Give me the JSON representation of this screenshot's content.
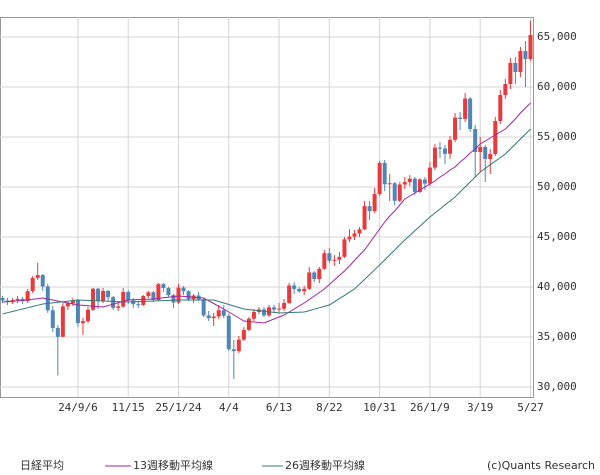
{
  "chart_data": {
    "type": "candlestick",
    "name": "日経平均",
    "source": "(c)Quants Research",
    "up_color": "#e8393c",
    "down_color": "#4f86b8",
    "grid": true,
    "categories": [
      null,
      null,
      null,
      null,
      null,
      null,
      null,
      null,
      null,
      null,
      null,
      null,
      null,
      null,
      null,
      "24/9/6",
      null,
      null,
      null,
      null,
      null,
      null,
      null,
      null,
      null,
      "11/15",
      null,
      null,
      null,
      null,
      null,
      null,
      null,
      null,
      null,
      "25/1/24",
      null,
      null,
      null,
      null,
      null,
      null,
      null,
      null,
      null,
      "4/4",
      null,
      null,
      null,
      null,
      null,
      null,
      null,
      null,
      null,
      "6/13",
      null,
      null,
      null,
      null,
      null,
      null,
      null,
      null,
      null,
      "8/22",
      null,
      null,
      null,
      null,
      null,
      null,
      null,
      null,
      null,
      "10/31",
      null,
      null,
      null,
      null,
      null,
      null,
      null,
      null,
      null,
      "26/1/9",
      null,
      null,
      null,
      null,
      null,
      null,
      null,
      null,
      null,
      "3/19",
      null,
      null,
      null,
      null,
      null,
      null,
      null,
      null,
      null,
      "5/27"
    ],
    "open": [
      38900,
      38646,
      38487,
      38683,
      38814,
      38596,
      39583,
      40912,
      41190,
      40063,
      37667,
      35909,
      35025,
      38062,
      38364,
      38647,
      36391,
      36581,
      37723,
      39829,
      38635,
      39605,
      38981,
      37913,
      38053,
      39500,
      38642,
      38283,
      38208,
      39091,
      39470,
      38701,
      40281,
      39894,
      39190,
      38451,
      39931,
      39572,
      38787,
      39149,
      38776,
      37155,
      36887,
      37053,
      37677,
      37120,
      33780,
      33586,
      34730,
      35705,
      36831,
      37503,
      37753,
      37160,
      37965,
      37741,
      37834,
      38403,
      40150,
      39811,
      39570,
      39819,
      41456,
      40800,
      41820,
      43378,
      42633,
      42718,
      43018,
      44768,
      45045,
      45355,
      45769,
      48088,
      47582,
      49299,
      52411,
      50276,
      50376,
      48625,
      50253,
      50491,
      50836,
      49507,
      50750,
      50339,
      51940,
      53936,
      53846,
      53322,
      54720,
      56941,
      56806,
      58850,
      55800,
      53500,
      54000,
      52800,
      53300,
      56600,
      59200,
      60300,
      62400,
      61500,
      63600,
      62800
    ],
    "high": [
      39100,
      38900,
      38900,
      39100,
      39000,
      39800,
      41100,
      42426,
      41300,
      40300,
      38100,
      36200,
      38400,
      38500,
      38900,
      38800,
      36900,
      38000,
      39900,
      39900,
      39900,
      39700,
      39100,
      38500,
      39900,
      39700,
      38900,
      38600,
      39200,
      39600,
      39600,
      40400,
      40400,
      40000,
      39300,
      40300,
      40100,
      39700,
      39300,
      39500,
      38900,
      37600,
      37400,
      38200,
      38200,
      37300,
      34700,
      35100,
      36000,
      37000,
      37800,
      38000,
      38000,
      38200,
      38200,
      38400,
      38800,
      40400,
      40500,
      40000,
      40100,
      42000,
      41600,
      42000,
      43700,
      43900,
      43200,
      43500,
      45000,
      45800,
      45700,
      46000,
      48600,
      48600,
      49900,
      52600,
      52700,
      51300,
      50500,
      50500,
      51000,
      51200,
      51000,
      50900,
      51000,
      52500,
      54300,
      54500,
      54200,
      55100,
      57400,
      57500,
      59400,
      59000,
      56200,
      55000,
      54200,
      53800,
      57000,
      59700,
      60800,
      62900,
      63000,
      64000,
      64600,
      66600
    ],
    "low": [
      38400,
      38200,
      38300,
      38400,
      38300,
      38400,
      39400,
      40700,
      39600,
      37400,
      35500,
      31156,
      35000,
      37700,
      38100,
      36000,
      35200,
      36400,
      37600,
      37800,
      38400,
      38600,
      37700,
      37600,
      37900,
      38300,
      37900,
      37900,
      38100,
      38900,
      38500,
      38600,
      39500,
      39000,
      37900,
      38300,
      39200,
      38600,
      38400,
      38600,
      37000,
      36600,
      36100,
      36800,
      36900,
      33600,
      30792,
      33400,
      34600,
      35600,
      36600,
      37300,
      37000,
      37000,
      37400,
      37400,
      37600,
      38300,
      39300,
      39400,
      39200,
      39700,
      40500,
      40400,
      41700,
      42400,
      42100,
      42300,
      42900,
      44500,
      44700,
      45000,
      45700,
      46700,
      47400,
      49100,
      49600,
      48600,
      48200,
      48500,
      49800,
      50100,
      49200,
      49400,
      49700,
      50100,
      51700,
      52900,
      52300,
      52800,
      54500,
      55700,
      56500,
      55500,
      51000,
      51500,
      50500,
      51300,
      53100,
      56300,
      58800,
      59800,
      60300,
      61000,
      60000,
      62600
    ],
    "close": [
      38646,
      38487,
      38683,
      38814,
      38596,
      39583,
      40912,
      41190,
      40063,
      37667,
      35909,
      35025,
      38062,
      38364,
      38647,
      36391,
      36581,
      37723,
      39829,
      38635,
      39605,
      38981,
      37913,
      38053,
      39500,
      38642,
      38283,
      38208,
      39091,
      39470,
      38701,
      40281,
      39894,
      39190,
      38451,
      39931,
      39572,
      38787,
      39149,
      38776,
      37155,
      36887,
      37053,
      37677,
      37120,
      33780,
      33586,
      34730,
      35705,
      36831,
      37503,
      37753,
      37160,
      37965,
      37741,
      37834,
      38403,
      40150,
      39811,
      39570,
      39819,
      41456,
      40800,
      41820,
      43378,
      42633,
      42718,
      43018,
      44768,
      45045,
      45355,
      45769,
      48088,
      47582,
      49299,
      52411,
      50276,
      50376,
      48625,
      50253,
      50491,
      50836,
      49507,
      50750,
      50339,
      51940,
      53936,
      53846,
      53322,
      54720,
      56941,
      56806,
      58850,
      55800,
      53500,
      54000,
      52800,
      53300,
      56600,
      59200,
      60300,
      62400,
      61500,
      63600,
      62800,
      65200
    ],
    "series": [
      {
        "name": "13週移動平均線",
        "color": "#a0269f",
        "values": [
          38500,
          38540,
          38580,
          38620,
          38660,
          38700,
          38770,
          38830,
          38900,
          38800,
          38700,
          38600,
          38500,
          38400,
          38300,
          38200,
          38160,
          38120,
          38080,
          38040,
          38000,
          38140,
          38280,
          38420,
          38560,
          38700,
          38720,
          38740,
          38760,
          38780,
          38800,
          38860,
          38920,
          38980,
          39040,
          39100,
          39060,
          39020,
          38980,
          38940,
          38900,
          38620,
          38350,
          38070,
          37800,
          37500,
          37200,
          36900,
          36600,
          36550,
          36500,
          36450,
          36400,
          36600,
          36800,
          37000,
          37200,
          37500,
          37800,
          38100,
          38400,
          38750,
          39100,
          39450,
          39800,
          40250,
          40700,
          41150,
          41600,
          42100,
          42650,
          43200,
          43700,
          44400,
          45100,
          45800,
          46500,
          47100,
          47600,
          48200,
          48800,
          49100,
          49400,
          49700,
          50000,
          50300,
          50600,
          51000,
          51300,
          51700,
          52000,
          52500,
          52900,
          53400,
          53800,
          54300,
          54600,
          54900,
          55200,
          55500,
          55800,
          56300,
          56800,
          57400,
          57900,
          58400
        ]
      },
      {
        "name": "26週移動平均線",
        "color": "#2f7b78",
        "values": [
          37300,
          37430,
          37550,
          37680,
          37800,
          37920,
          38050,
          38170,
          38300,
          38360,
          38410,
          38470,
          38530,
          38590,
          38640,
          38700,
          38680,
          38660,
          38640,
          38620,
          38600,
          38580,
          38560,
          38540,
          38520,
          38500,
          38520,
          38540,
          38560,
          38580,
          38600,
          38620,
          38640,
          38660,
          38680,
          38700,
          38700,
          38700,
          38700,
          38700,
          38700,
          38700,
          38700,
          38550,
          38400,
          38250,
          38100,
          37950,
          37800,
          37740,
          37690,
          37630,
          37570,
          37510,
          37460,
          37400,
          37420,
          37440,
          37460,
          37480,
          37500,
          37640,
          37780,
          37920,
          38060,
          38200,
          38520,
          38840,
          39160,
          39480,
          39800,
          40280,
          40760,
          41240,
          41720,
          42200,
          42700,
          43200,
          43700,
          44200,
          44700,
          45160,
          45620,
          46080,
          46540,
          47000,
          47400,
          47800,
          48200,
          48600,
          49000,
          49500,
          50000,
          50500,
          51000,
          51500,
          51860,
          52220,
          52580,
          52940,
          53300,
          53800,
          54300,
          54800,
          55300,
          55800
        ]
      }
    ],
    "ylim": [
      29000,
      67000
    ],
    "yticks": [
      {
        "value": 30000,
        "label": "30,000"
      },
      {
        "value": 35000,
        "label": "35,000"
      },
      {
        "value": 40000,
        "label": "40,000"
      },
      {
        "value": 45000,
        "label": "45,000"
      },
      {
        "value": 50000,
        "label": "50,000"
      },
      {
        "value": 55000,
        "label": "55,000"
      },
      {
        "value": 60000,
        "label": "60,000"
      },
      {
        "value": 65000,
        "label": "65,000"
      }
    ]
  }
}
